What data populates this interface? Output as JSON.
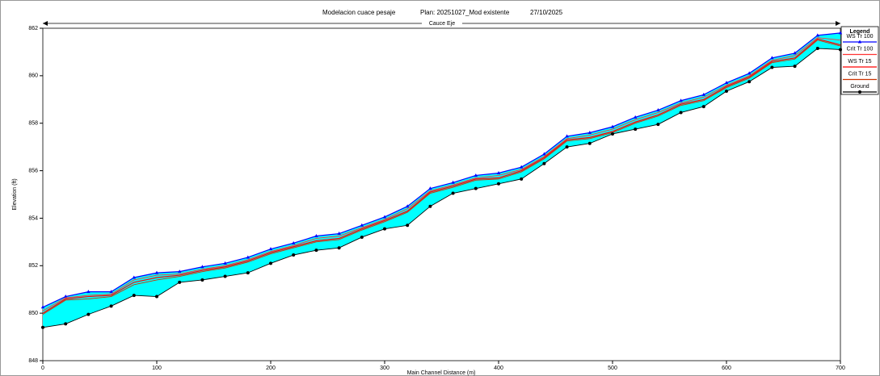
{
  "chart_data": {
    "type": "line",
    "title": "Modelacion cuace pesaje",
    "plan": "Plan: 20251027_Mod existente",
    "date": "27/10/2025",
    "subtitle": "Cauce Eje",
    "xlabel": "Main Channel Distance (m)",
    "ylabel": "Elevation (ft)",
    "legend_title": "Legend",
    "legend": "right",
    "fill_color": "#00ffff",
    "xlim": [
      0,
      700
    ],
    "xticks": [
      0,
      100,
      200,
      300,
      400,
      500,
      600,
      700
    ],
    "ylim": [
      848,
      862
    ],
    "yticks": [
      848,
      850,
      852,
      854,
      856,
      858,
      860,
      862
    ],
    "x": [
      0,
      20,
      40,
      60,
      80,
      100,
      120,
      140,
      160,
      180,
      200,
      220,
      240,
      260,
      280,
      300,
      320,
      340,
      360,
      380,
      400,
      420,
      440,
      460,
      480,
      500,
      520,
      540,
      560,
      580,
      600,
      620,
      640,
      660,
      680,
      700
    ],
    "series": [
      {
        "name": "WS  Tr 100",
        "color": "#0000ff",
        "marker": "triangle",
        "values": [
          850.25,
          850.7,
          850.9,
          850.9,
          851.5,
          851.7,
          851.75,
          851.95,
          852.1,
          852.35,
          852.7,
          852.95,
          853.25,
          853.35,
          853.7,
          854.05,
          854.5,
          855.25,
          855.5,
          855.8,
          855.9,
          856.15,
          856.7,
          857.45,
          857.6,
          857.85,
          858.25,
          858.55,
          858.95,
          859.2,
          859.7,
          860.1,
          860.75,
          860.95,
          861.7,
          861.8
        ]
      },
      {
        "name": "Crit  Tr 100",
        "color": "#ff3333",
        "marker": "none",
        "values": [
          850.1,
          850.65,
          850.75,
          850.8,
          851.4,
          851.6,
          851.65,
          851.85,
          852.0,
          852.25,
          852.6,
          852.85,
          853.15,
          853.25,
          853.6,
          853.95,
          854.4,
          855.15,
          855.4,
          855.7,
          855.8,
          856.05,
          856.6,
          857.35,
          857.5,
          857.75,
          858.15,
          858.45,
          858.85,
          859.1,
          859.6,
          860.0,
          860.65,
          860.85,
          861.6,
          861.5
        ]
      },
      {
        "name": "WS  Tr 15",
        "color": "#ff0000",
        "marker": "none",
        "values": [
          850.0,
          850.6,
          850.7,
          850.75,
          851.3,
          851.5,
          851.6,
          851.8,
          851.95,
          852.2,
          852.55,
          852.8,
          853.05,
          853.15,
          853.55,
          853.9,
          854.3,
          855.1,
          855.35,
          855.65,
          855.7,
          856.0,
          856.55,
          857.3,
          857.4,
          857.65,
          858.05,
          858.35,
          858.8,
          859.0,
          859.55,
          859.95,
          860.6,
          860.75,
          861.55,
          861.3
        ]
      },
      {
        "name": "Crit  Tr 15",
        "color": "#cc3300",
        "marker": "none",
        "values": [
          849.95,
          850.55,
          850.6,
          850.7,
          851.2,
          851.4,
          851.55,
          851.75,
          851.9,
          852.15,
          852.5,
          852.75,
          853.0,
          853.1,
          853.5,
          853.85,
          854.25,
          855.05,
          855.3,
          855.6,
          855.65,
          855.95,
          856.5,
          857.25,
          857.35,
          857.6,
          858.0,
          858.3,
          858.75,
          858.95,
          859.5,
          859.9,
          860.55,
          860.7,
          861.5,
          861.25
        ]
      },
      {
        "name": "Ground",
        "color": "#000000",
        "marker": "circle",
        "values": [
          849.4,
          849.55,
          849.95,
          850.3,
          850.75,
          850.7,
          851.3,
          851.4,
          851.55,
          851.7,
          852.1,
          852.45,
          852.65,
          852.75,
          853.2,
          853.55,
          853.7,
          854.5,
          855.05,
          855.25,
          855.45,
          855.65,
          856.3,
          857.0,
          857.15,
          857.55,
          857.75,
          857.95,
          858.45,
          858.7,
          859.35,
          859.75,
          860.35,
          860.4,
          861.15,
          861.1
        ]
      }
    ]
  }
}
